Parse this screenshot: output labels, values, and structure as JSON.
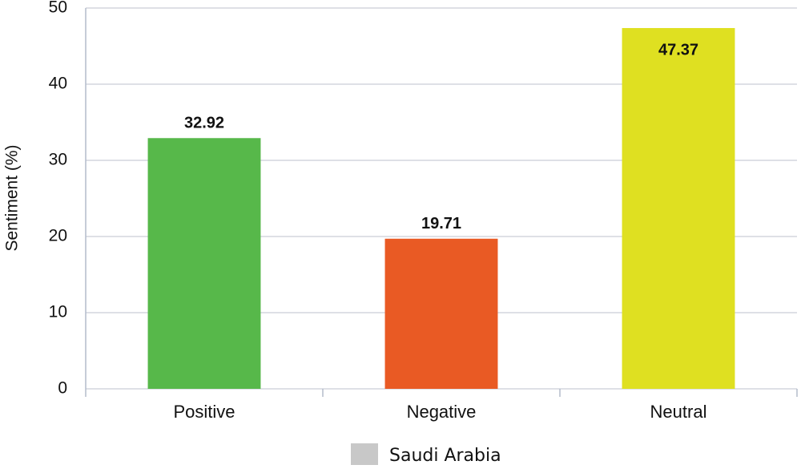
{
  "chart_data": {
    "type": "bar",
    "y_label": "Sentiment (%)",
    "categories": [
      "Positive",
      "Negative",
      "Neutral"
    ],
    "series": [
      {
        "name": "Saudi Arabia",
        "color": "#c8c8c8",
        "values": [
          32.92,
          19.71,
          47.37
        ],
        "bar_colors": [
          "#57b84a",
          "#e95a24",
          "#dfe021"
        ]
      }
    ],
    "ylim": [
      0,
      50
    ],
    "yticks": [
      0,
      10,
      20,
      30,
      40,
      50
    ],
    "grid": true
  }
}
